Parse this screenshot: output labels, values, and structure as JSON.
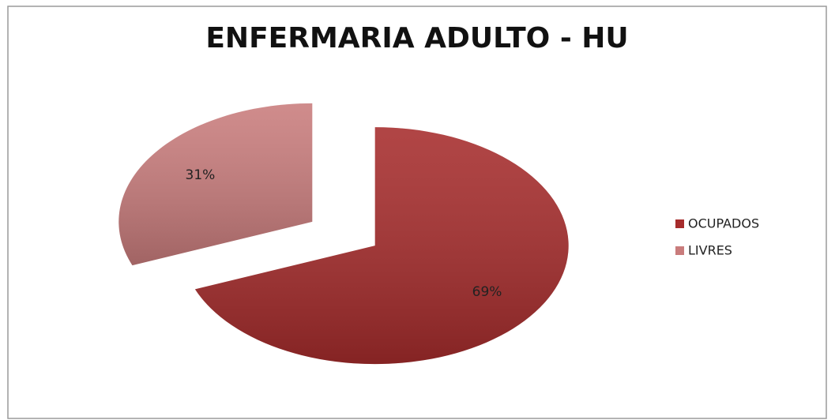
{
  "chart_data": {
    "type": "pie",
    "title": "ENFERMARIA ADULTO - HU",
    "categories": [
      "OCUPADOS",
      "LIVRES"
    ],
    "values": [
      69,
      31
    ],
    "value_labels": [
      "69%",
      "31%"
    ],
    "colors": [
      "#a62c2c",
      "#c97c7c"
    ],
    "legend": "right"
  }
}
